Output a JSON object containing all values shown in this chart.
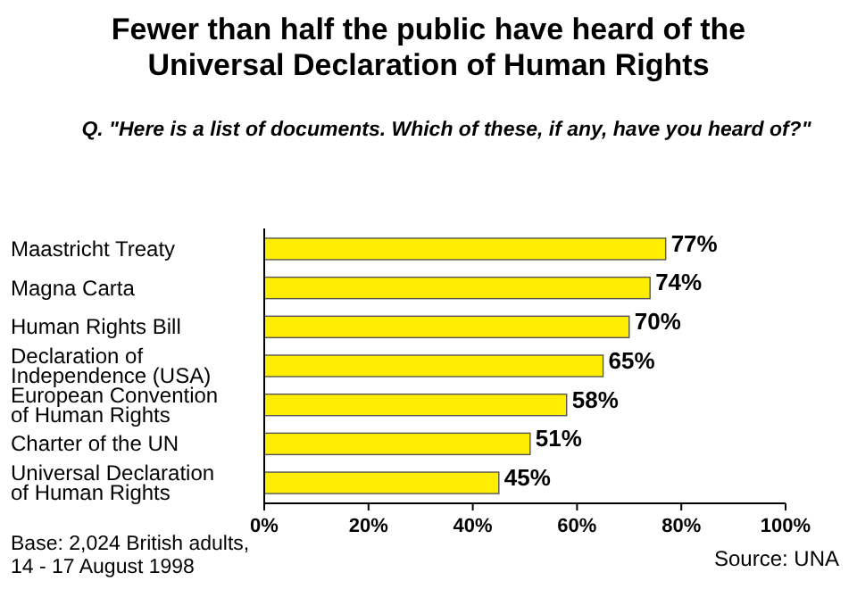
{
  "chart_data": {
    "type": "bar",
    "orientation": "horizontal",
    "title": "Fewer than half the public have heard of the\nUniversal Declaration of Human Rights",
    "subtitle": "Q.  \"Here is a list of documents.  Which of these, if any, have you heard of?\"",
    "categories": [
      "Maastricht Treaty",
      "Magna Carta",
      "Human Rights Bill",
      "Declaration of Independence (USA)",
      "European Convention of Human Rights",
      "Charter of the UN",
      "Universal Declaration of Human Rights"
    ],
    "values": [
      77,
      74,
      70,
      65,
      58,
      51,
      45
    ],
    "value_labels": [
      "77%",
      "74%",
      "70%",
      "65%",
      "58%",
      "51%",
      "45%"
    ],
    "color": "#ffee00",
    "xlim": [
      0,
      100
    ],
    "xticks": [
      {
        "value": 0,
        "label": "0%"
      },
      {
        "value": 20,
        "label": "20%"
      },
      {
        "value": 40,
        "label": "40%"
      },
      {
        "value": 60,
        "label": "60%"
      },
      {
        "value": 80,
        "label": "80%"
      },
      {
        "value": 100,
        "label": "100%"
      }
    ],
    "grid": false,
    "annotations": [
      "Base: 2,024 British adults, 14 - 17 August 1998",
      "Source: UNA"
    ]
  }
}
